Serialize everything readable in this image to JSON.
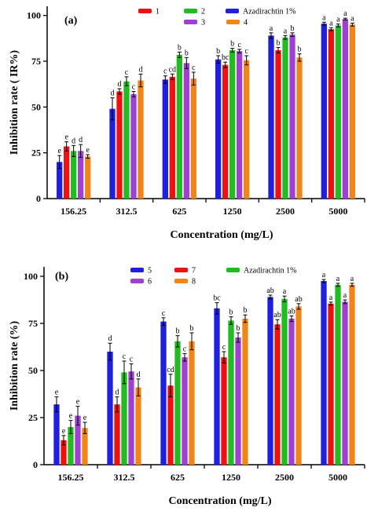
{
  "chart_data": [
    {
      "type": "bar",
      "panel_label": "(a)",
      "xlabel": "Concentration (mg/L)",
      "ylabel": "Inhibition rate ( IR%)",
      "ylim": [
        0,
        105
      ],
      "yticks": [
        0,
        25,
        50,
        75,
        100
      ],
      "categories": [
        "156.25",
        "312.5",
        "625",
        "1250",
        "2500",
        "5000"
      ],
      "legend_position": "top",
      "series": [
        {
          "name": "Azadirachtin 1%",
          "color": "#1f1fe0",
          "values": [
            20,
            49,
            65,
            76,
            89,
            95.5
          ],
          "errors": [
            3.5,
            6,
            2,
            2,
            1.5,
            0.8
          ],
          "letters": [
            "e",
            "d",
            "c",
            "b",
            "a",
            "a"
          ]
        },
        {
          "name": "1",
          "color": "#ee1111",
          "values": [
            28.5,
            58.5,
            66.5,
            73,
            81,
            92.5
          ],
          "errors": [
            2.5,
            1.5,
            1.5,
            1.5,
            1.5,
            0.8
          ],
          "letters": [
            "e",
            "d",
            "cd",
            "bc",
            "b",
            "a"
          ]
        },
        {
          "name": "2",
          "color": "#22bb22",
          "values": [
            26,
            64,
            78.5,
            81,
            88,
            94.5
          ],
          "errors": [
            3,
            2.5,
            1.5,
            1,
            1,
            0.8
          ],
          "letters": [
            "d",
            "c",
            "b",
            "b",
            "a",
            "a"
          ]
        },
        {
          "name": "3",
          "color": "#a040d0",
          "values": [
            26,
            57,
            74,
            80.5,
            89.5,
            98
          ],
          "errors": [
            3.5,
            1.5,
            3,
            1,
            1,
            0.5
          ],
          "letters": [
            "d",
            "c",
            "b",
            "c",
            "b",
            "a"
          ]
        },
        {
          "name": "4",
          "color": "#f0861a",
          "values": [
            23,
            64.5,
            65.5,
            75.5,
            77,
            95
          ],
          "errors": [
            1,
            3.5,
            3.5,
            2.5,
            2,
            0.8
          ],
          "letters": [
            "e",
            "d",
            "c",
            "c",
            "b",
            "a"
          ]
        }
      ]
    },
    {
      "type": "bar",
      "panel_label": "(b)",
      "xlabel": "Concentration (mg/L)",
      "ylabel": "Inhibition rate (%)",
      "ylim": [
        0,
        105
      ],
      "yticks": [
        0,
        25,
        50,
        75,
        100
      ],
      "categories": [
        "156.25",
        "312.5",
        "625",
        "1250",
        "2500",
        "5000"
      ],
      "legend_position": "top",
      "series": [
        {
          "name": "5",
          "color": "#1f1fe0",
          "values": [
            32,
            60,
            76,
            83,
            89,
            97.5
          ],
          "errors": [
            4,
            4.5,
            2,
            3,
            1,
            0.8
          ],
          "letters": [
            "e",
            "d",
            "c",
            "bc",
            "ab",
            "a"
          ]
        },
        {
          "name": "7",
          "color": "#ee1111",
          "values": [
            13,
            32,
            42,
            57,
            74.5,
            85.5
          ],
          "errors": [
            2.5,
            4,
            6,
            3,
            2.5,
            0.8
          ],
          "letters": [
            "e",
            "d",
            "cd",
            "c",
            "ab",
            "a"
          ]
        },
        {
          "name": "Azadirachtin 1%",
          "color": "#22bb22",
          "values": [
            20,
            49,
            65.5,
            76.5,
            88,
            95.5
          ],
          "errors": [
            3.5,
            6,
            3,
            2,
            1.5,
            0.8
          ],
          "letters": [
            "e",
            "c",
            "b",
            "b",
            "a",
            "a"
          ]
        },
        {
          "name": "6",
          "color": "#a040d0",
          "values": [
            26,
            49.5,
            57,
            67.5,
            77.5,
            86.5
          ],
          "errors": [
            5,
            4,
            2,
            2.5,
            1.5,
            1
          ],
          "letters": [
            "e",
            "c",
            "c",
            "b",
            "ab",
            "a"
          ]
        },
        {
          "name": "8",
          "color": "#f0861a",
          "values": [
            19.5,
            41,
            65.5,
            77.5,
            84,
            95.5
          ],
          "errors": [
            3,
            4.5,
            4.5,
            2,
            1.5,
            0.8
          ],
          "letters": [
            "e",
            "d",
            "b",
            "b",
            "ab",
            "a"
          ]
        }
      ]
    }
  ]
}
